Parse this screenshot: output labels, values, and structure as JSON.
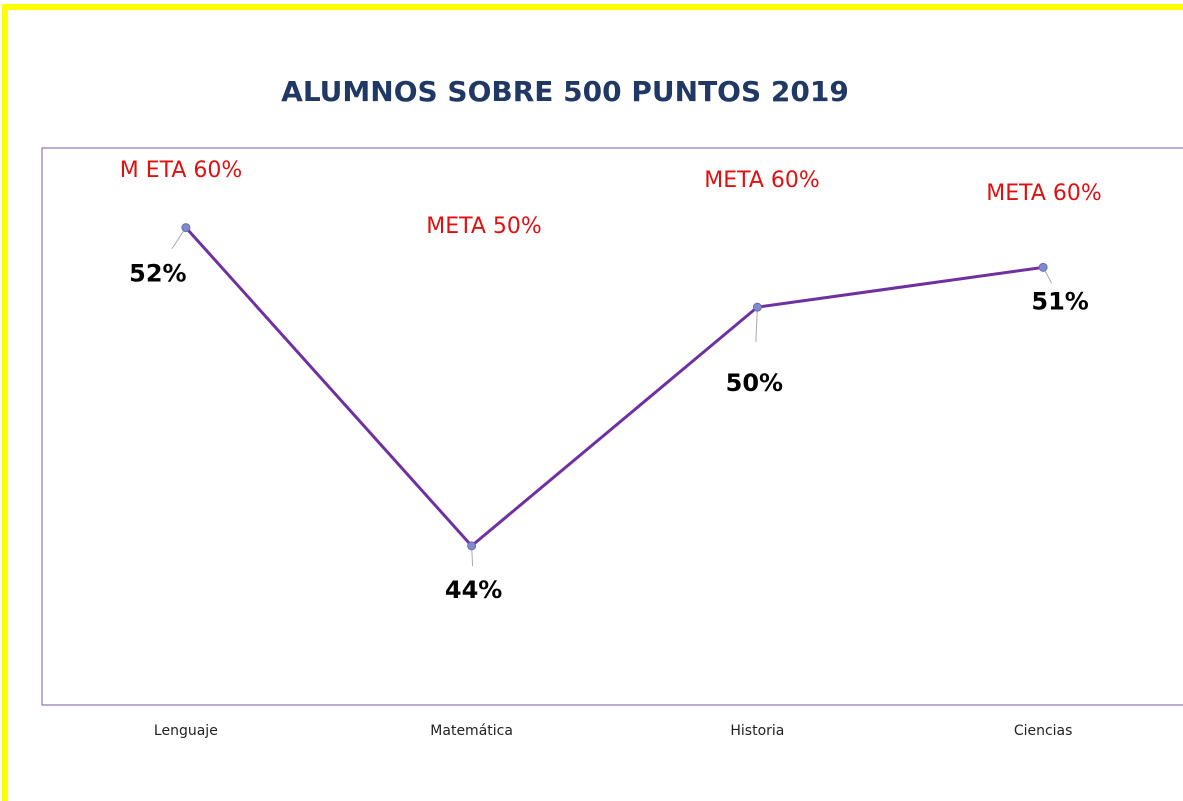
{
  "chart_data": {
    "type": "line",
    "title": "ALUMNOS SOBRE 500 PUNTOS 2019",
    "categories": [
      "Lenguaje",
      "Matemática",
      "Historia",
      "Ciencias"
    ],
    "series": [
      {
        "name": null,
        "color": "#7030a0",
        "values": [
          52,
          44,
          50,
          51
        ],
        "value_labels": [
          "52%",
          "44%",
          "50%",
          "51%"
        ]
      }
    ],
    "ylim": [
      40,
      54
    ],
    "annotations": [
      "M ETA 60%",
      "META 50%",
      "META 60%",
      "META 60%"
    ]
  }
}
